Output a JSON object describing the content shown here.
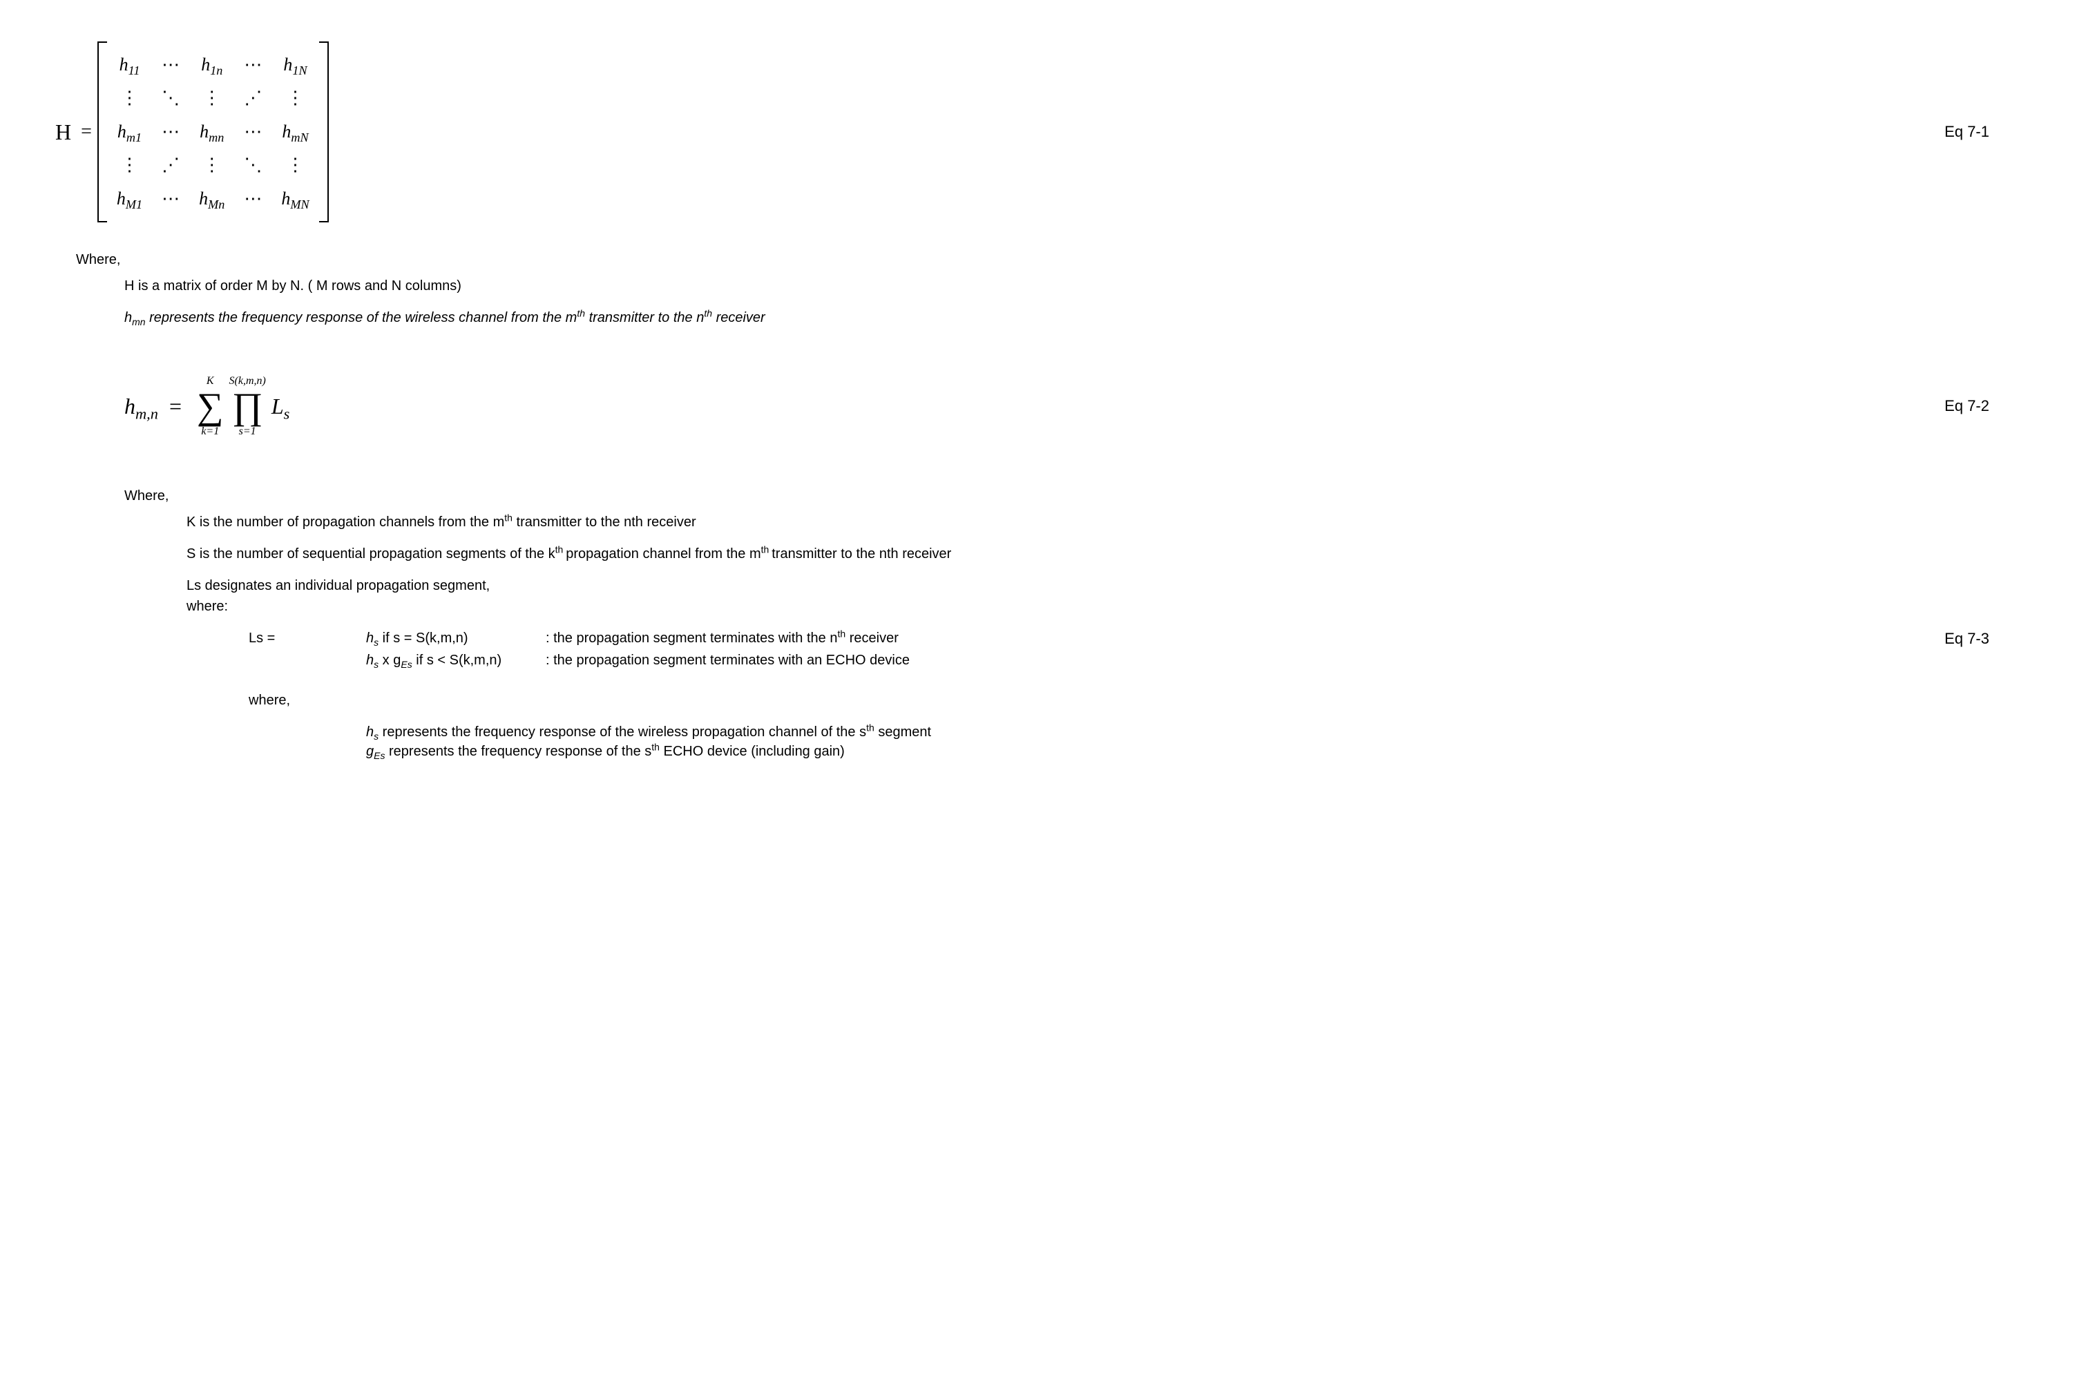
{
  "eq1": {
    "label": "Eq 7-1",
    "lhs": "H",
    "matrix": {
      "rows": [
        [
          {
            "h": "h",
            "sub": "11"
          },
          {
            "t": "⋯"
          },
          {
            "h": "h",
            "sub": "1n"
          },
          {
            "t": "⋯"
          },
          {
            "h": "h",
            "sub": "1N"
          }
        ],
        [
          {
            "t": "⋮"
          },
          {
            "t": "⋱"
          },
          {
            "t": "⋮"
          },
          {
            "t": "⋰"
          },
          {
            "t": "⋮"
          }
        ],
        [
          {
            "h": "h",
            "sub": "m1"
          },
          {
            "t": "⋯"
          },
          {
            "h": "h",
            "sub": "mn"
          },
          {
            "t": "⋯"
          },
          {
            "h": "h",
            "sub": "mN"
          }
        ],
        [
          {
            "t": "⋮"
          },
          {
            "t": "⋰"
          },
          {
            "t": "⋮"
          },
          {
            "t": "⋱"
          },
          {
            "t": "⋮"
          }
        ],
        [
          {
            "h": "h",
            "sub": "M1"
          },
          {
            "t": "⋯"
          },
          {
            "h": "h",
            "sub": "Mn"
          },
          {
            "t": "⋯"
          },
          {
            "h": "h",
            "sub": "MN"
          }
        ]
      ]
    }
  },
  "where1": "Where,",
  "where1_line1": "H is a matrix of order M by N. ( M rows and N columns)",
  "where1_line2_pre": "h",
  "where1_line2_sub": "mn",
  "where1_line2_mid": " represents the frequency response of the wireless channel from the m",
  "where1_line2_sup1": "th",
  "where1_line2_mid2": " transmitter to the n",
  "where1_line2_sup2": "th",
  "where1_line2_end": " receiver",
  "eq2": {
    "label": "Eq 7-2",
    "lhs_h": "h",
    "lhs_sub": "m,n",
    "sum_upper": "K",
    "sum_lower": "k=1",
    "prod_upper": "S(k,m,n)",
    "prod_lower": "s=1",
    "body_h": "L",
    "body_sub": "s"
  },
  "where2": "Where,",
  "where2_k_pre": "K is the number of propagation channels from the m",
  "where2_k_sup": "th",
  "where2_k_post": " transmitter to the nth receiver",
  "where2_s_pre": "S is the number of sequential propagation segments  of the k",
  "where2_s_sup": "th ",
  "where2_s_mid": "propagation channel from the m",
  "where2_s_sup2": "th ",
  "where2_s_post": "transmitter to the nth    receiver",
  "where2_ls1": "Ls designates an individual propagation segment,",
  "where2_ls2": "where:",
  "eq3": {
    "label": "Eq 7-3",
    "lhs": "Ls =",
    "case1_expr_h": "h",
    "case1_expr_sub": "s",
    "case1_cond": " if s = S(k,m,n)",
    "case1_desc_pre": ": the propagation segment terminates with the n",
    "case1_desc_sup": "th",
    "case1_desc_post": " receiver",
    "case2_expr_h1": "h",
    "case2_expr_sub1": "s",
    "case2_expr_x": " x g",
    "case2_expr_sub2": "Es",
    "case2_cond": " if s < S(k,m,n)",
    "case2_desc": ": the propagation segment terminates with an ECHO device"
  },
  "where3": "where,",
  "where3_hs_h": "h",
  "where3_hs_sub": "s",
  "where3_hs_mid": " represents the frequency response of the wireless propagation channel of the s",
  "where3_hs_sup": "th",
  "where3_hs_post": " segment",
  "where3_g_g": "g",
  "where3_g_sub": "Es",
  "where3_g_mid": " represents the frequency response of the s",
  "where3_g_sup": "th",
  "where3_g_post": " ECHO device (including gain)"
}
